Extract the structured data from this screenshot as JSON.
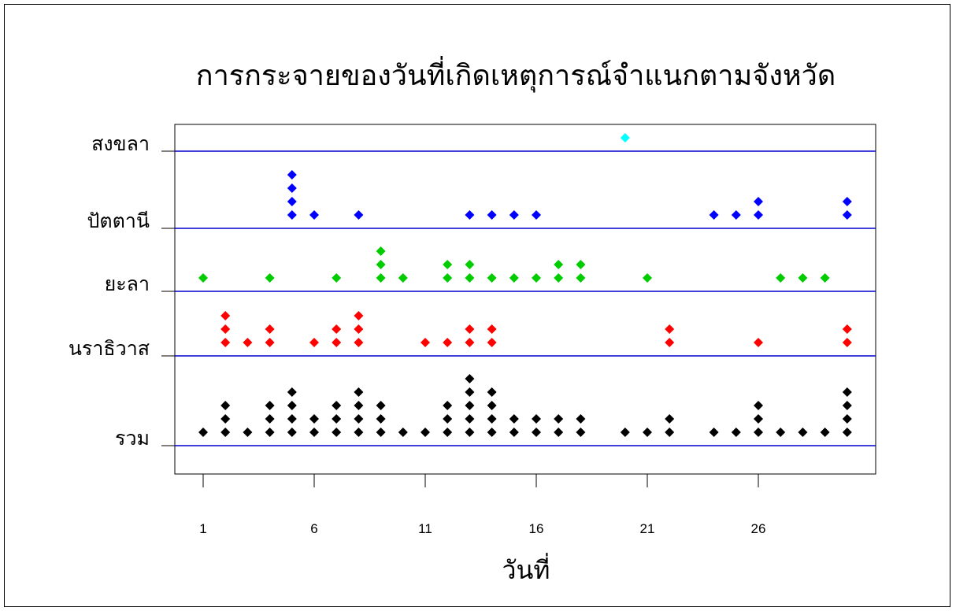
{
  "chart_data": {
    "type": "scatter",
    "title": "การกระจายของวันที่เกิดเหตุการณ์จำแนกตามจังหวัด",
    "xlabel": "วันที่",
    "ylabel": "",
    "xlim": [
      0,
      30.7
    ],
    "x_ticks": [
      1,
      6,
      11,
      16,
      21,
      26
    ],
    "y_categories": [
      "รวม",
      "นราธิวาส",
      "ยะลา",
      "ปัตตานี",
      "สงขลา"
    ],
    "grid": "horizontal lines at category baselines",
    "legend": "none",
    "series": [
      {
        "category": "รวม",
        "color": "#000000",
        "points": [
          [
            1,
            1
          ],
          [
            2,
            3
          ],
          [
            3,
            1
          ],
          [
            4,
            3
          ],
          [
            5,
            4
          ],
          [
            6,
            2
          ],
          [
            7,
            3
          ],
          [
            8,
            4
          ],
          [
            9,
            3
          ],
          [
            10,
            1
          ],
          [
            11,
            1
          ],
          [
            12,
            3
          ],
          [
            13,
            5
          ],
          [
            14,
            4
          ],
          [
            15,
            2
          ],
          [
            16,
            2
          ],
          [
            17,
            2
          ],
          [
            18,
            2
          ],
          [
            20,
            1
          ],
          [
            21,
            1
          ],
          [
            22,
            2
          ],
          [
            24,
            1
          ],
          [
            25,
            1
          ],
          [
            26,
            3
          ],
          [
            27,
            1
          ],
          [
            28,
            1
          ],
          [
            29,
            1
          ],
          [
            30,
            4
          ]
        ]
      },
      {
        "category": "นราธิวาส",
        "color": "#ff0000",
        "points": [
          [
            2,
            3
          ],
          [
            3,
            1
          ],
          [
            4,
            2
          ],
          [
            6,
            1
          ],
          [
            7,
            2
          ],
          [
            8,
            3
          ],
          [
            11,
            1
          ],
          [
            12,
            1
          ],
          [
            13,
            2
          ],
          [
            14,
            2
          ],
          [
            22,
            2
          ],
          [
            26,
            1
          ],
          [
            30,
            2
          ]
        ]
      },
      {
        "category": "ยะลา",
        "color": "#00cc00",
        "points": [
          [
            1,
            1
          ],
          [
            4,
            1
          ],
          [
            7,
            1
          ],
          [
            9,
            3
          ],
          [
            10,
            1
          ],
          [
            12,
            2
          ],
          [
            13,
            2
          ],
          [
            14,
            1
          ],
          [
            15,
            1
          ],
          [
            16,
            1
          ],
          [
            17,
            2
          ],
          [
            18,
            2
          ],
          [
            21,
            1
          ],
          [
            27,
            1
          ],
          [
            28,
            1
          ],
          [
            29,
            1
          ]
        ]
      },
      {
        "category": "ปัตตานี",
        "color": "#0000ff",
        "points": [
          [
            5,
            4
          ],
          [
            6,
            1
          ],
          [
            8,
            1
          ],
          [
            13,
            1
          ],
          [
            14,
            1
          ],
          [
            15,
            1
          ],
          [
            16,
            1
          ],
          [
            24,
            1
          ],
          [
            25,
            1
          ],
          [
            26,
            2
          ],
          [
            30,
            2
          ]
        ]
      },
      {
        "category": "สงขลา",
        "color": "#00ffff",
        "points": [
          [
            20,
            1
          ]
        ]
      }
    ]
  }
}
